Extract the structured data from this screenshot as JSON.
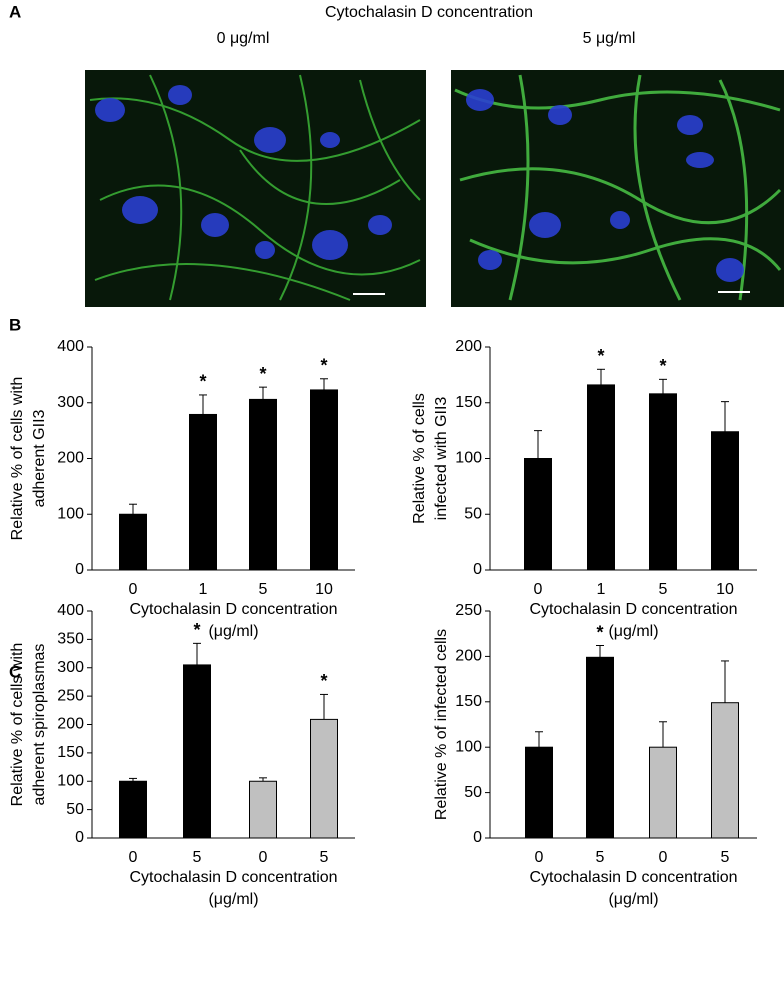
{
  "figure": {
    "panel_labels": [
      "A",
      "B",
      "C"
    ],
    "title": "Cytochalasin D concentration",
    "image_labels": [
      "0 μg/ml",
      "5 μg/ml"
    ]
  },
  "chart_data": [
    {
      "type": "bar",
      "ylabel": [
        "Relative % of cells with",
        "adherent GII3"
      ],
      "xlabel": [
        "Cytochalasin D concentration",
        "(μg/ml)"
      ],
      "categories": [
        "0",
        "1",
        "5",
        "10"
      ],
      "values": [
        100,
        279,
        306,
        323
      ],
      "errors": [
        18,
        35,
        22,
        20
      ],
      "colors": [
        "#000000",
        "#000000",
        "#000000",
        "#000000"
      ],
      "significance": [
        null,
        "*",
        "*",
        "*"
      ],
      "ylim": [
        0,
        400
      ],
      "yticks": [
        0,
        100,
        200,
        300,
        400
      ]
    },
    {
      "type": "bar",
      "ylabel": [
        "Relative % of cells",
        "infected with  GII3"
      ],
      "xlabel": [
        "Cytochalasin D concentration",
        "(μg/ml)"
      ],
      "categories": [
        "0",
        "1",
        "5",
        "10"
      ],
      "values": [
        100,
        166,
        158,
        124
      ],
      "errors": [
        25,
        14,
        13,
        27
      ],
      "colors": [
        "#000000",
        "#000000",
        "#000000",
        "#000000"
      ],
      "significance": [
        null,
        "*",
        "*",
        null
      ],
      "ylim": [
        0,
        200
      ],
      "yticks": [
        0,
        50,
        100,
        150,
        200
      ]
    },
    {
      "type": "bar",
      "ylabel": [
        "Relative % of cells with",
        "adherent spiroplasmas"
      ],
      "xlabel": [
        "Cytochalasin D concentration",
        "(μg/ml)"
      ],
      "categories": [
        "0",
        "5",
        "0",
        "5"
      ],
      "values": [
        100,
        305,
        100,
        209
      ],
      "errors": [
        5,
        38,
        6,
        44
      ],
      "colors": [
        "#000000",
        "#000000",
        "#c0c0c0",
        "#c0c0c0"
      ],
      "significance": [
        null,
        "*",
        null,
        "*"
      ],
      "ylim": [
        0,
        400
      ],
      "yticks": [
        0,
        50,
        100,
        150,
        200,
        250,
        300,
        350,
        400
      ]
    },
    {
      "type": "bar",
      "ylabel": [
        "Relative % of infected cells"
      ],
      "xlabel": [
        "Cytochalasin D concentration",
        "(μg/ml)"
      ],
      "categories": [
        "0",
        "5",
        "0",
        "5"
      ],
      "values": [
        100,
        199,
        100,
        149
      ],
      "errors": [
        17,
        13,
        28,
        46
      ],
      "colors": [
        "#000000",
        "#000000",
        "#c0c0c0",
        "#c0c0c0"
      ],
      "significance": [
        null,
        "*",
        null,
        null
      ],
      "ylim": [
        0,
        250
      ],
      "yticks": [
        0,
        50,
        100,
        150,
        200,
        250
      ]
    }
  ]
}
